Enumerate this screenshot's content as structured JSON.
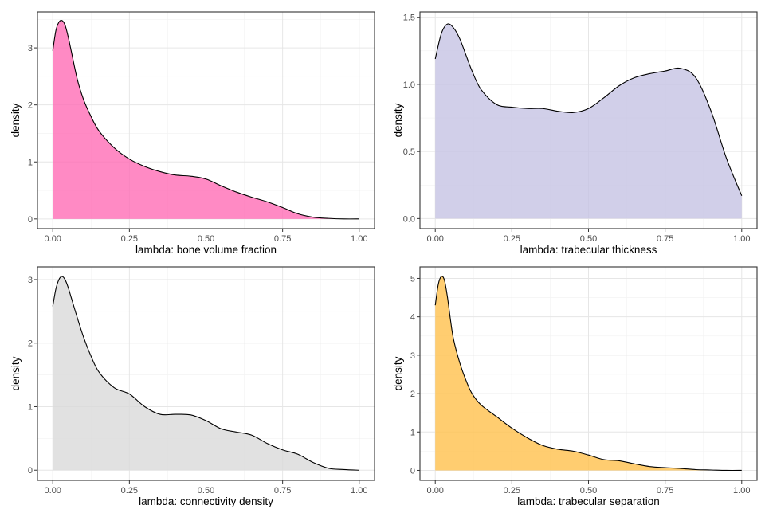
{
  "chart_data": [
    {
      "type": "area",
      "xlabel": "lambda: bone volume fraction",
      "ylabel": "density",
      "fill": "#ff69b4",
      "xlim": [
        0,
        1
      ],
      "ylim": [
        0,
        3.5
      ],
      "xticks": [
        0.0,
        0.25,
        0.5,
        0.75,
        1.0
      ],
      "xtick_labels": [
        "0.00",
        "0.25",
        "0.50",
        "0.75",
        "1.00"
      ],
      "yticks": [
        0,
        1,
        2,
        3
      ],
      "ytick_labels": [
        "0",
        "1",
        "2",
        "3"
      ],
      "grid": true,
      "x": [
        0,
        0.01,
        0.02,
        0.03,
        0.04,
        0.05,
        0.06,
        0.08,
        0.1,
        0.12,
        0.15,
        0.2,
        0.25,
        0.3,
        0.35,
        0.4,
        0.45,
        0.5,
        0.55,
        0.6,
        0.65,
        0.7,
        0.75,
        0.8,
        0.85,
        0.9,
        0.95,
        1.0
      ],
      "y": [
        2.95,
        3.3,
        3.45,
        3.48,
        3.4,
        3.2,
        2.95,
        2.45,
        2.1,
        1.85,
        1.55,
        1.25,
        1.05,
        0.92,
        0.83,
        0.77,
        0.75,
        0.7,
        0.58,
        0.47,
        0.38,
        0.3,
        0.2,
        0.09,
        0.03,
        0.01,
        0.0,
        0.0
      ]
    },
    {
      "type": "area",
      "xlabel": "lambda: trabecular thickness",
      "ylabel": "density",
      "fill": "#c5c3e3",
      "xlim": [
        0,
        1
      ],
      "ylim": [
        0,
        1.5
      ],
      "xticks": [
        0.0,
        0.25,
        0.5,
        0.75,
        1.0
      ],
      "xtick_labels": [
        "0.00",
        "0.25",
        "0.50",
        "0.75",
        "1.00"
      ],
      "yticks": [
        0,
        0.5,
        1.0,
        1.5
      ],
      "ytick_labels": [
        "0.0",
        "0.5",
        "1.0",
        "1.5"
      ],
      "grid": true,
      "x": [
        0,
        0.02,
        0.04,
        0.06,
        0.08,
        0.1,
        0.12,
        0.15,
        0.2,
        0.25,
        0.3,
        0.35,
        0.4,
        0.45,
        0.5,
        0.55,
        0.6,
        0.65,
        0.7,
        0.75,
        0.8,
        0.85,
        0.9,
        0.95,
        1.0
      ],
      "y": [
        1.19,
        1.38,
        1.45,
        1.42,
        1.34,
        1.22,
        1.1,
        0.96,
        0.85,
        0.83,
        0.82,
        0.82,
        0.8,
        0.79,
        0.82,
        0.9,
        0.99,
        1.05,
        1.08,
        1.1,
        1.12,
        1.05,
        0.8,
        0.45,
        0.17
      ]
    },
    {
      "type": "area",
      "xlabel": "lambda: connectivity density",
      "ylabel": "density",
      "fill": "#d9d9d9",
      "xlim": [
        0,
        1
      ],
      "ylim": [
        0,
        3.1
      ],
      "xticks": [
        0.0,
        0.25,
        0.5,
        0.75,
        1.0
      ],
      "xtick_labels": [
        "0.00",
        "0.25",
        "0.50",
        "0.75",
        "1.00"
      ],
      "yticks": [
        0,
        1,
        2,
        3
      ],
      "ytick_labels": [
        "0",
        "1",
        "2",
        "3"
      ],
      "grid": true,
      "x": [
        0,
        0.01,
        0.02,
        0.03,
        0.04,
        0.05,
        0.06,
        0.08,
        0.1,
        0.12,
        0.15,
        0.2,
        0.25,
        0.3,
        0.35,
        0.4,
        0.45,
        0.5,
        0.55,
        0.6,
        0.65,
        0.7,
        0.75,
        0.8,
        0.85,
        0.9,
        0.95,
        1.0
      ],
      "y": [
        2.58,
        2.85,
        3.0,
        3.05,
        3.0,
        2.88,
        2.72,
        2.4,
        2.1,
        1.85,
        1.55,
        1.3,
        1.2,
        1.0,
        0.88,
        0.88,
        0.87,
        0.78,
        0.65,
        0.6,
        0.55,
        0.42,
        0.32,
        0.25,
        0.12,
        0.03,
        0.01,
        0.0
      ]
    },
    {
      "type": "area",
      "xlabel": "lambda: trabecular separation",
      "ylabel": "density",
      "fill": "#ffc04c",
      "xlim": [
        0,
        1
      ],
      "ylim": [
        0,
        5.1
      ],
      "xticks": [
        0.0,
        0.25,
        0.5,
        0.75,
        1.0
      ],
      "xtick_labels": [
        "0.00",
        "0.25",
        "0.50",
        "0.75",
        "1.00"
      ],
      "yticks": [
        0,
        1,
        2,
        3,
        4,
        5
      ],
      "ytick_labels": [
        "0",
        "1",
        "2",
        "3",
        "4",
        "5"
      ],
      "grid": true,
      "x": [
        0,
        0.01,
        0.02,
        0.03,
        0.04,
        0.05,
        0.06,
        0.08,
        0.1,
        0.12,
        0.15,
        0.2,
        0.25,
        0.3,
        0.35,
        0.4,
        0.45,
        0.5,
        0.55,
        0.6,
        0.65,
        0.7,
        0.75,
        0.8,
        0.85,
        0.9,
        0.95,
        1.0
      ],
      "y": [
        4.3,
        4.85,
        5.05,
        4.95,
        4.5,
        3.9,
        3.4,
        2.8,
        2.35,
        2.0,
        1.7,
        1.4,
        1.1,
        0.85,
        0.65,
        0.55,
        0.5,
        0.4,
        0.28,
        0.25,
        0.17,
        0.1,
        0.07,
        0.05,
        0.02,
        0.01,
        0.0,
        0.0
      ]
    }
  ]
}
